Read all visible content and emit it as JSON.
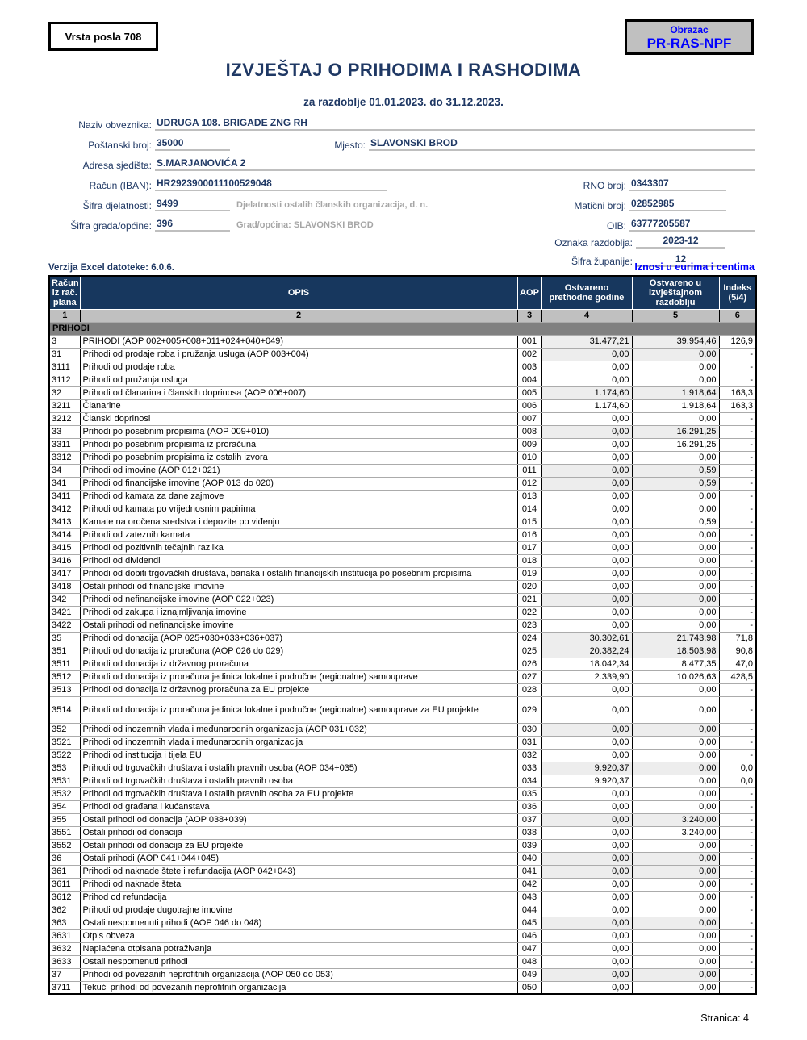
{
  "badges": {
    "vrsta_posla": "Vrsta posla 708",
    "obrazac_label": "Obrazac",
    "obrazac_code": "PR-RAS-NPF"
  },
  "header": {
    "title": "IZVJEŠTAJ O PRIHODIMA I RASHODIMA",
    "subtitle": "za razdoblje 01.01.2023. do 31.12.2023."
  },
  "fields": {
    "naziv_label": "Naziv obveznika:",
    "naziv_value": "UDRUGA 108. BRIGADE ZNG RH",
    "postanski_label": "Poštanski broj:",
    "postanski_value": "35000",
    "mjesto_label": "Mjesto:",
    "mjesto_value": "SLAVONSKI BROD",
    "adresa_label": "Adresa sjedišta:",
    "adresa_value": "S.MARJANOVIĆA 2",
    "iban_label": "Račun (IBAN):",
    "iban_value": "HR2923900011100529048",
    "rno_label": "RNO broj:",
    "rno_value": "0343307",
    "sifra_djel_label": "Šifra djelatnosti:",
    "sifra_djel_value": "9499",
    "sifra_djel_note": "Djelatnosti ostalih članskih organizacija, d. n.",
    "maticni_label": "Matični broj:",
    "maticni_value": "02852985",
    "sifra_grada_label": "Šifra grada/općine:",
    "sifra_grada_value": "396",
    "grad_note": "Grad/općina: SLAVONSKI BROD",
    "oib_label": "OIB:",
    "oib_value": "63777205587",
    "oznaka_label": "Oznaka razdoblja:",
    "oznaka_value": "2023-12",
    "zupanija_label": "Šifra županije:",
    "zupanija_value": "12"
  },
  "meta": {
    "verzija": "Verzija Excel datoteke: 6.0.6.",
    "iznosi": "Iznosi u eurima i centima",
    "stranica": "Stranica: 4"
  },
  "colors": {
    "navy_text": "#1F3864",
    "table_header_bg": "#17375E",
    "bright_blue": "#0000FF",
    "number_row_bg": "#C0C0C0",
    "section_bar_bg": "#808080",
    "shaded_cell_bg": "#EDEDED",
    "helper_gray": "#A6A6A6",
    "underline_gray": "#BFBFBF"
  },
  "table": {
    "headers": [
      "Račun iz rač. plana",
      "OPIS",
      "AOP",
      "Ostvareno prethodne godine",
      "Ostvareno u izvještajnom razdoblju",
      "Indeks (5/4)"
    ],
    "col_numbers": [
      "1",
      "2",
      "3",
      "4",
      "5",
      "6"
    ],
    "section": "PRIHODI",
    "rows": [
      {
        "code": "3",
        "desc": "PRIHODI (AOP 002+005+008+011+024+040+049)",
        "aop": "001",
        "prev": "31.477,21",
        "curr": "39.954,46",
        "idx": "126,9",
        "shaded": true
      },
      {
        "code": "31",
        "desc": "Prihodi od prodaje roba i pružanja usluga (AOP 003+004)",
        "aop": "002",
        "prev": "0,00",
        "curr": "0,00",
        "idx": "-",
        "shaded": true
      },
      {
        "code": "3111",
        "desc": "Prihodi od prodaje roba",
        "aop": "003",
        "prev": "0,00",
        "curr": "0,00",
        "idx": "-"
      },
      {
        "code": "3112",
        "desc": "Prihodi od pružanja usluga",
        "aop": "004",
        "prev": "0,00",
        "curr": "0,00",
        "idx": "-"
      },
      {
        "code": "32",
        "desc": "Prihodi od članarina i članskih doprinosa (AOP 006+007)",
        "aop": "005",
        "prev": "1.174,60",
        "curr": "1.918,64",
        "idx": "163,3",
        "shaded": true
      },
      {
        "code": "3211",
        "desc": "Članarine",
        "aop": "006",
        "prev": "1.174,60",
        "curr": "1.918,64",
        "idx": "163,3"
      },
      {
        "code": "3212",
        "desc": "Članski doprinosi",
        "aop": "007",
        "prev": "0,00",
        "curr": "0,00",
        "idx": "-"
      },
      {
        "code": "33",
        "desc": "Prihodi po posebnim propisima (AOP 009+010)",
        "aop": "008",
        "prev": "0,00",
        "curr": "16.291,25",
        "idx": "-",
        "shaded": true
      },
      {
        "code": "3311",
        "desc": "Prihodi po posebnim propisima iz proračuna",
        "aop": "009",
        "prev": "0,00",
        "curr": "16.291,25",
        "idx": "-"
      },
      {
        "code": "3312",
        "desc": "Prihodi po posebnim propisima iz ostalih izvora",
        "aop": "010",
        "prev": "0,00",
        "curr": "0,00",
        "idx": "-"
      },
      {
        "code": "34",
        "desc": "Prihodi od imovine (AOP 012+021)",
        "aop": "011",
        "prev": "0,00",
        "curr": "0,59",
        "idx": "-",
        "shaded": true
      },
      {
        "code": "341",
        "desc": "Prihodi od financijske imovine (AOP 013 do 020)",
        "aop": "012",
        "prev": "0,00",
        "curr": "0,59",
        "idx": "-",
        "shaded": true
      },
      {
        "code": "3411",
        "desc": "Prihodi od kamata za dane zajmove",
        "aop": "013",
        "prev": "0,00",
        "curr": "0,00",
        "idx": "-"
      },
      {
        "code": "3412",
        "desc": "Prihodi od kamata po vrijednosnim papirima",
        "aop": "014",
        "prev": "0,00",
        "curr": "0,00",
        "idx": "-"
      },
      {
        "code": "3413",
        "desc": "Kamate na oročena sredstva i depozite po viđenju",
        "aop": "015",
        "prev": "0,00",
        "curr": "0,59",
        "idx": "-"
      },
      {
        "code": "3414",
        "desc": "Prihodi od zateznih kamata",
        "aop": "016",
        "prev": "0,00",
        "curr": "0,00",
        "idx": "-"
      },
      {
        "code": "3415",
        "desc": "Prihodi od pozitivnih tečajnih razlika",
        "aop": "017",
        "prev": "0,00",
        "curr": "0,00",
        "idx": "-"
      },
      {
        "code": "3416",
        "desc": "Prihodi od dividendi",
        "aop": "018",
        "prev": "0,00",
        "curr": "0,00",
        "idx": "-"
      },
      {
        "code": "3417",
        "desc": "Prihodi od dobiti trgovačkih društava, banaka i ostalih financijskih institucija po posebnim propisima",
        "aop": "019",
        "prev": "0,00",
        "curr": "0,00",
        "idx": "-"
      },
      {
        "code": "3418",
        "desc": "Ostali prihodi od financijske imovine",
        "aop": "020",
        "prev": "0,00",
        "curr": "0,00",
        "idx": "-"
      },
      {
        "code": "342",
        "desc": "Prihodi od nefinancijske imovine (AOP 022+023)",
        "aop": "021",
        "prev": "0,00",
        "curr": "0,00",
        "idx": "-",
        "shaded": true
      },
      {
        "code": "3421",
        "desc": "Prihodi od zakupa i iznajmljivanja imovine",
        "aop": "022",
        "prev": "0,00",
        "curr": "0,00",
        "idx": "-"
      },
      {
        "code": "3422",
        "desc": "Ostali prihodi od nefinancijske imovine",
        "aop": "023",
        "prev": "0,00",
        "curr": "0,00",
        "idx": "-"
      },
      {
        "code": "35",
        "desc": "Prihodi od donacija (AOP 025+030+033+036+037)",
        "aop": "024",
        "prev": "30.302,61",
        "curr": "21.743,98",
        "idx": "71,8",
        "shaded": true
      },
      {
        "code": "351",
        "desc": "Prihodi od donacija iz proračuna (AOP 026 do 029)",
        "aop": "025",
        "prev": "20.382,24",
        "curr": "18.503,98",
        "idx": "90,8",
        "shaded": true
      },
      {
        "code": "3511",
        "desc": "Prihodi od donacija iz državnog proračuna",
        "aop": "026",
        "prev": "18.042,34",
        "curr": "8.477,35",
        "idx": "47,0"
      },
      {
        "code": "3512",
        "desc": "Prihodi od donacija iz proračuna jedinica lokalne i područne (regionalne) samouprave",
        "aop": "027",
        "prev": "2.339,90",
        "curr": "10.026,63",
        "idx": "428,5"
      },
      {
        "code": "3513",
        "desc": "Prihodi od donacija iz državnog proračuna za EU projekte",
        "aop": "028",
        "prev": "0,00",
        "curr": "0,00",
        "idx": "-"
      },
      {
        "code": "3514",
        "desc": "Prihodi od donacija iz proračuna jedinica lokalne i područne (regionalne) samouprave za EU projekte",
        "aop": "029",
        "prev": "0,00",
        "curr": "0,00",
        "idx": "-",
        "tall": true
      },
      {
        "code": "352",
        "desc": "Prihodi od inozemnih vlada i međunarodnih organizacija (AOP 031+032)",
        "aop": "030",
        "prev": "0,00",
        "curr": "0,00",
        "idx": "-",
        "shaded": true
      },
      {
        "code": "3521",
        "desc": "Prihodi od inozemnih vlada i međunarodnih organizacija",
        "aop": "031",
        "prev": "0,00",
        "curr": "0,00",
        "idx": "-"
      },
      {
        "code": "3522",
        "desc": "Prihodi od institucija i tijela EU",
        "aop": "032",
        "prev": "0,00",
        "curr": "0,00",
        "idx": "-"
      },
      {
        "code": "353",
        "desc": "Prihodi od trgovačkih društava i ostalih pravnih osoba (AOP 034+035)",
        "aop": "033",
        "prev": "9.920,37",
        "curr": "0,00",
        "idx": "0,0",
        "shaded": true
      },
      {
        "code": "3531",
        "desc": "Prihodi od trgovačkih društava i ostalih pravnih osoba",
        "aop": "034",
        "prev": "9.920,37",
        "curr": "0,00",
        "idx": "0,0"
      },
      {
        "code": "3532",
        "desc": "Prihodi od trgovačkih društava i ostalih pravnih osoba za EU projekte",
        "aop": "035",
        "prev": "0,00",
        "curr": "0,00",
        "idx": "-"
      },
      {
        "code": "354",
        "desc": "Prihodi od građana i kućanstava",
        "aop": "036",
        "prev": "0,00",
        "curr": "0,00",
        "idx": "-"
      },
      {
        "code": "355",
        "desc": "Ostali prihodi od donacija (AOP 038+039)",
        "aop": "037",
        "prev": "0,00",
        "curr": "3.240,00",
        "idx": "-",
        "shaded": true
      },
      {
        "code": "3551",
        "desc": "Ostali prihodi od donacija",
        "aop": "038",
        "prev": "0,00",
        "curr": "3.240,00",
        "idx": "-"
      },
      {
        "code": "3552",
        "desc": "Ostali prihodi od donacija za EU projekte",
        "aop": "039",
        "prev": "0,00",
        "curr": "0,00",
        "idx": "-"
      },
      {
        "code": "36",
        "desc": "Ostali prihodi (AOP 041+044+045)",
        "aop": "040",
        "prev": "0,00",
        "curr": "0,00",
        "idx": "-",
        "shaded": true
      },
      {
        "code": "361",
        "desc": "Prihodi od naknade štete i refundacija (AOP 042+043)",
        "aop": "041",
        "prev": "0,00",
        "curr": "0,00",
        "idx": "-",
        "shaded": true
      },
      {
        "code": "3611",
        "desc": "Prihodi od naknade šteta",
        "aop": "042",
        "prev": "0,00",
        "curr": "0,00",
        "idx": "-"
      },
      {
        "code": "3612",
        "desc": "Prihod od refundacija",
        "aop": "043",
        "prev": "0,00",
        "curr": "0,00",
        "idx": "-"
      },
      {
        "code": "362",
        "desc": "Prihodi od prodaje dugotrajne imovine",
        "aop": "044",
        "prev": "0,00",
        "curr": "0,00",
        "idx": "-"
      },
      {
        "code": "363",
        "desc": "Ostali nespomenuti prihodi (AOP 046 do 048)",
        "aop": "045",
        "prev": "0,00",
        "curr": "0,00",
        "idx": "-",
        "shaded": true
      },
      {
        "code": "3631",
        "desc": "Otpis obveza",
        "aop": "046",
        "prev": "0,00",
        "curr": "0,00",
        "idx": "-"
      },
      {
        "code": "3632",
        "desc": "Naplaćena otpisana potraživanja",
        "aop": "047",
        "prev": "0,00",
        "curr": "0,00",
        "idx": "-"
      },
      {
        "code": "3633",
        "desc": "Ostali nespomenuti prihodi",
        "aop": "048",
        "prev": "0,00",
        "curr": "0,00",
        "idx": "-"
      },
      {
        "code": "37",
        "desc": "Prihodi od povezanih neprofitnih organizacija (AOP 050 do 053)",
        "aop": "049",
        "prev": "0,00",
        "curr": "0,00",
        "idx": "-",
        "shaded": true
      },
      {
        "code": "3711",
        "desc": "Tekući prihodi od povezanih neprofitnih organizacija",
        "aop": "050",
        "prev": "0,00",
        "curr": "0,00",
        "idx": "-"
      }
    ]
  }
}
